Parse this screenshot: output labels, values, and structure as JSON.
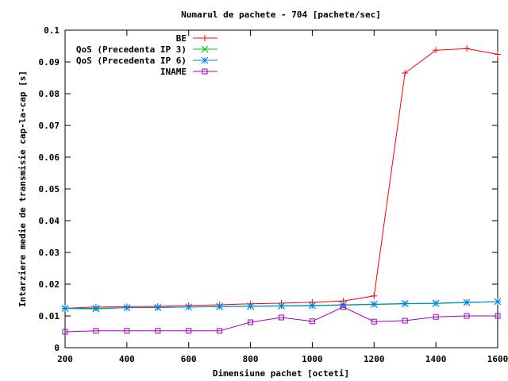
{
  "chart_data": {
    "type": "line",
    "title": "Numarul de pachete - 704 [pachete/sec]",
    "xlabel": "Dimensiune pachet [octeti]",
    "ylabel": "Intarziere medie de transmisie cap-la-cap [s]",
    "xlim": [
      200,
      1600
    ],
    "ylim": [
      0,
      0.1
    ],
    "xticks": [
      200,
      400,
      600,
      800,
      1000,
      1200,
      1400,
      1600
    ],
    "yticks": [
      0,
      0.01,
      0.02,
      0.03,
      0.04,
      0.05,
      0.06,
      0.07,
      0.08,
      0.09,
      0.1
    ],
    "xtick_labels": [
      "200",
      "400",
      "600",
      "800",
      "1000",
      "1200",
      "1400",
      "1600"
    ],
    "ytick_labels": [
      "0",
      "0.01",
      "0.02",
      "0.03",
      "0.04",
      "0.05",
      "0.06",
      "0.07",
      "0.08",
      "0.09",
      "0.1"
    ],
    "grid": false,
    "legend_position": "top-right",
    "series": [
      {
        "name": "BE",
        "color": "#ff0000",
        "marker": "plus",
        "x": [
          200,
          300,
          400,
          500,
          600,
          700,
          800,
          900,
          1000,
          1100,
          1200,
          1300,
          1400,
          1500,
          1600
        ],
        "y": [
          0.0124,
          0.0128,
          0.0129,
          0.013,
          0.0133,
          0.0135,
          0.0138,
          0.014,
          0.0143,
          0.0147,
          0.0163,
          0.0865,
          0.0937,
          0.0942,
          0.0924
        ]
      },
      {
        "name": "QoS (Precedenta IP 3)",
        "color": "#00c000",
        "marker": "x",
        "x": [
          200,
          300,
          400,
          500,
          600,
          700,
          800,
          900,
          1000,
          1100,
          1200,
          1300,
          1400,
          1500,
          1600
        ],
        "y": [
          0.0123,
          0.0122,
          0.0126,
          0.0126,
          0.0128,
          0.0129,
          0.013,
          0.0131,
          0.0132,
          0.0134,
          0.0136,
          0.0138,
          0.0139,
          0.0142,
          0.0145
        ]
      },
      {
        "name": "QoS (Precedenta IP 6)",
        "color": "#0080ff",
        "marker": "star",
        "x": [
          200,
          300,
          400,
          500,
          600,
          700,
          800,
          900,
          1000,
          1100,
          1200,
          1300,
          1400,
          1500,
          1600
        ],
        "y": [
          0.0124,
          0.0124,
          0.0126,
          0.0127,
          0.0128,
          0.013,
          0.0131,
          0.0132,
          0.0133,
          0.0135,
          0.0137,
          0.0139,
          0.014,
          0.0143,
          0.0145
        ]
      },
      {
        "name": "INAME",
        "color": "#a000c0",
        "marker": "square",
        "x": [
          200,
          300,
          400,
          500,
          600,
          700,
          800,
          900,
          1000,
          1100,
          1200,
          1300,
          1400,
          1500,
          1600
        ],
        "y": [
          0.005,
          0.0053,
          0.0053,
          0.0053,
          0.0053,
          0.0053,
          0.008,
          0.0095,
          0.0083,
          0.0128,
          0.0082,
          0.0085,
          0.0097,
          0.01,
          0.01
        ]
      }
    ]
  }
}
